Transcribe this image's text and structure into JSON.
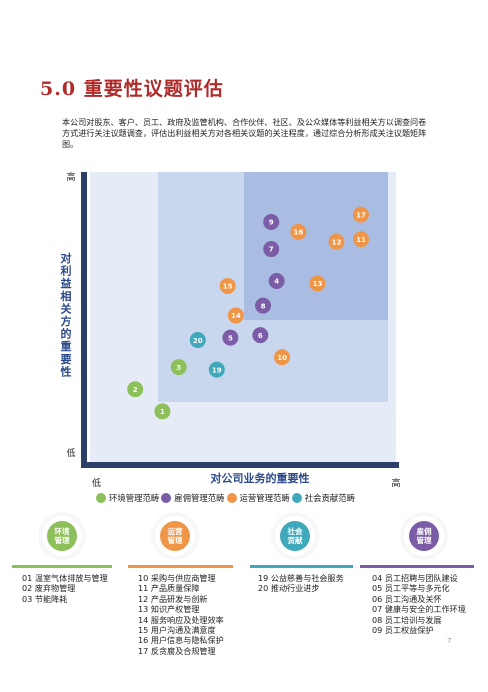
{
  "page": {
    "title_num": "5.0",
    "title_text": "重要性议题评估",
    "intro": "本公司对股东、客户、员工、政府及监管机构、合作伙伴、社区、及公众媒体等利益相关方以调查问卷方式进行关注议题调查，评估出利益相关方对各相关议题的关注程度，通过综合分析形成关注议题矩阵图。",
    "page_number": "7"
  },
  "chart_data": {
    "type": "scatter",
    "xlabel": "对公司业务的重要性",
    "ylabel": "对利益相关方的重要性",
    "x_low": "低",
    "x_high": "高",
    "y_low": "低",
    "y_high": "高",
    "xlim": [
      0,
      10
    ],
    "ylim": [
      0,
      10
    ],
    "categories": [
      {
        "key": "env",
        "name": "环境管理范畴",
        "color": "#8dc05a"
      },
      {
        "key": "emp",
        "name": "雇佣管理范畴",
        "color": "#7b5ca6"
      },
      {
        "key": "ops",
        "name": "运营管理范畴",
        "color": "#ef9548"
      },
      {
        "key": "soc",
        "name": "社会贡献范畴",
        "color": "#3fa9bb"
      }
    ],
    "points": [
      {
        "id": "1",
        "cat": "env",
        "x": 2.0,
        "y": 1.0
      },
      {
        "id": "2",
        "cat": "env",
        "x": 1.0,
        "y": 1.9
      },
      {
        "id": "3",
        "cat": "env",
        "x": 2.6,
        "y": 2.8
      },
      {
        "id": "4",
        "cat": "emp",
        "x": 6.2,
        "y": 6.3
      },
      {
        "id": "5",
        "cat": "emp",
        "x": 4.5,
        "y": 4.0
      },
      {
        "id": "6",
        "cat": "emp",
        "x": 5.6,
        "y": 4.1
      },
      {
        "id": "7",
        "cat": "emp",
        "x": 6.0,
        "y": 7.6
      },
      {
        "id": "8",
        "cat": "emp",
        "x": 5.7,
        "y": 5.3
      },
      {
        "id": "9",
        "cat": "emp",
        "x": 6.0,
        "y": 8.7
      },
      {
        "id": "10",
        "cat": "ops",
        "x": 6.4,
        "y": 3.2
      },
      {
        "id": "11",
        "cat": "ops",
        "x": 9.3,
        "y": 8.0
      },
      {
        "id": "12",
        "cat": "ops",
        "x": 8.4,
        "y": 7.9
      },
      {
        "id": "13",
        "cat": "ops",
        "x": 7.7,
        "y": 6.2
      },
      {
        "id": "14",
        "cat": "ops",
        "x": 4.7,
        "y": 4.9
      },
      {
        "id": "15",
        "cat": "ops",
        "x": 4.4,
        "y": 6.1
      },
      {
        "id": "16",
        "cat": "ops",
        "x": 7.0,
        "y": 8.3
      },
      {
        "id": "17",
        "cat": "ops",
        "x": 9.3,
        "y": 9.0
      },
      {
        "id": "19",
        "cat": "soc",
        "x": 4.0,
        "y": 2.7
      },
      {
        "id": "20",
        "cat": "soc",
        "x": 3.3,
        "y": 3.9
      }
    ]
  },
  "categories_detail": [
    {
      "key": "env",
      "label_line1": "环境",
      "label_line2": "管理",
      "color": "#8dc05a",
      "items": [
        "01 温室气体排放与管理",
        "02 废弃物管理",
        "03 节能降耗"
      ]
    },
    {
      "key": "ops",
      "label_line1": "运营",
      "label_line2": "管理",
      "color": "#ef9548",
      "items": [
        "10 采购与供应商管理",
        "11 产品质量保障",
        "12 产品研发与创新",
        "13 知识产权管理",
        "14 服务响应及处理效率",
        "15 用户沟通及满意度",
        "16 用户信息与隐私保护",
        "17 反贪腐及合规管理"
      ]
    },
    {
      "key": "soc",
      "label_line1": "社会",
      "label_line2": "贡献",
      "color": "#3fa9bb",
      "items": [
        "19 公益慈善与社会服务",
        "20 推动行业进步"
      ]
    },
    {
      "key": "emp",
      "label_line1": "雇佣",
      "label_line2": "管理",
      "color": "#7b5ca6",
      "items": [
        "04 员工招聘与团队建设",
        "05 员工平等与多元化",
        "06 员工沟通及关怀",
        "07 健康与安全的工作环境",
        "08 员工培训与发展",
        "09 员工权益保护"
      ]
    }
  ]
}
